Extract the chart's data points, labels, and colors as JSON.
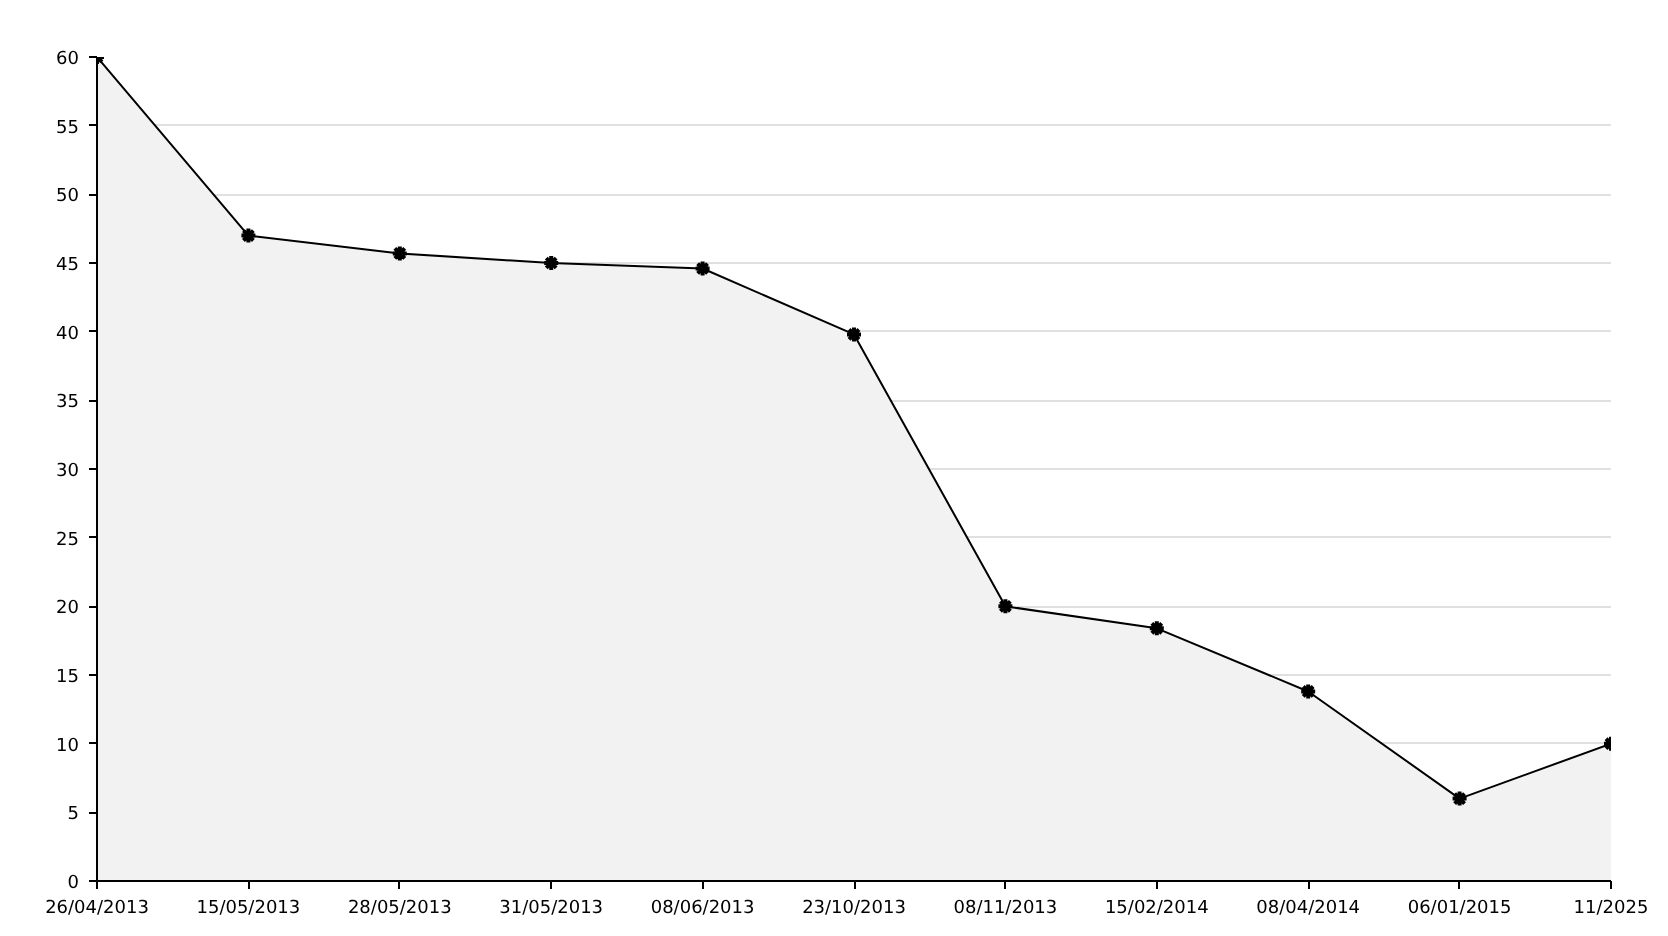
{
  "chart_data": {
    "type": "area",
    "categories": [
      "26/04/2013",
      "15/05/2013",
      "28/05/2013",
      "31/05/2013",
      "08/06/2013",
      "23/10/2013",
      "08/11/2013",
      "15/02/2014",
      "08/04/2014",
      "06/01/2015",
      "11/2025"
    ],
    "series": [
      {
        "color": "#000000",
        "values": [
          60,
          47,
          45.7,
          45,
          44.6,
          39.8,
          20,
          18.4,
          13.8,
          6,
          10
        ]
      }
    ],
    "ylim": [
      0,
      60
    ],
    "yticks": [
      0,
      5,
      10,
      15,
      20,
      25,
      30,
      35,
      40,
      45,
      50,
      55,
      60
    ],
    "grid": "y",
    "marker": "cross",
    "line_style": "solid"
  }
}
